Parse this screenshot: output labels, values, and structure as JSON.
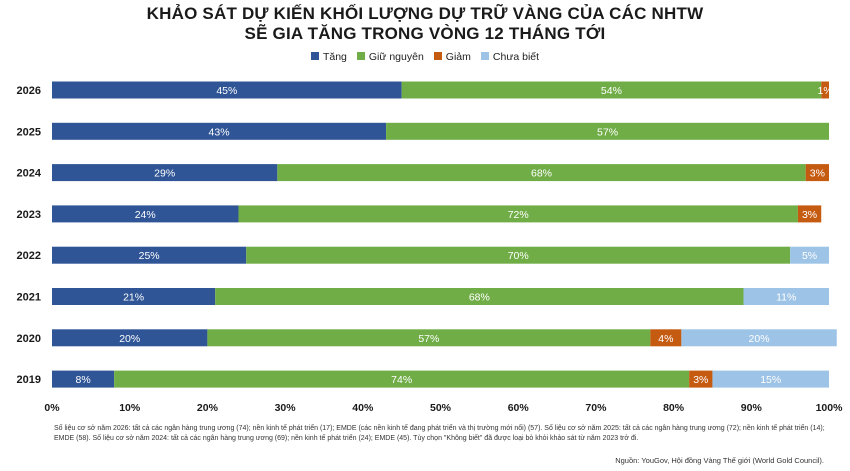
{
  "title_line1": "KHẢO SÁT DỰ KIẾN KHỐI LƯỢNG DỰ TRỮ VÀNG CỦA CÁC NHTW",
  "title_line2": "SẼ GIA TĂNG TRONG VÒNG 12 THÁNG TỚI",
  "footnote": "Số liệu cơ sở năm 2026: tất cả các ngân hàng trung ương (74); nền kinh tế phát triển (17); EMDE  (các nền kinh tế đang phát triển và thị trường mới nổi) (57). Số liệu cơ sở năm 2025: tất cả các ngân hàng trung ương (72); nền kinh tế phát triển (14); EMDE   (58). Số liệu cơ sở năm 2024: tất cả các ngân hàng trung ương (69); nền kinh tế phát triển (24); EMDE   (45). Tùy chọn \"Không biết\" đã được loại bỏ khỏi khảo sát từ năm 2023 trở đi.",
  "source": "Nguồn: YouGov, Hội đồng Vàng Thế giới (World Gold Council).",
  "chart_data": {
    "type": "bar",
    "orientation": "horizontal",
    "stacked": true,
    "categories": [
      "2026",
      "2025",
      "2024",
      "2023",
      "2022",
      "2021",
      "2020",
      "2019"
    ],
    "series": [
      {
        "name": "Tăng",
        "color": "#2f5596",
        "values": [
          45,
          43,
          29,
          24,
          25,
          21,
          20,
          8
        ],
        "labels": [
          "45%",
          "43%",
          "29%",
          "24%",
          "25%",
          "21%",
          "20%",
          "8%"
        ]
      },
      {
        "name": "Giữ nguyên",
        "color": "#70ad47",
        "values": [
          54,
          57,
          68,
          72,
          70,
          68,
          57,
          74
        ],
        "labels": [
          "54%",
          "57%",
          "68%",
          "72%",
          "70%",
          "68%",
          "57%",
          "74%"
        ]
      },
      {
        "name": "Giảm",
        "color": "#c55a11",
        "values": [
          1,
          0,
          3,
          3,
          0,
          0,
          4,
          3
        ],
        "labels": [
          "1%",
          "",
          "3%",
          "3%",
          "",
          "",
          "4%",
          "3%"
        ]
      },
      {
        "name": "Chưa biết",
        "color": "#9dc3e6",
        "values": [
          0,
          0,
          0,
          0,
          5,
          11,
          20,
          15
        ],
        "labels": [
          "",
          "",
          "",
          "",
          "5%",
          "11%",
          "20%",
          "15%"
        ]
      }
    ],
    "xlim": [
      0,
      100
    ],
    "xticks": [
      "0%",
      "10%",
      "20%",
      "30%",
      "40%",
      "50%",
      "60%",
      "70%",
      "80%",
      "90%",
      "100%"
    ],
    "legend_position": "top"
  }
}
